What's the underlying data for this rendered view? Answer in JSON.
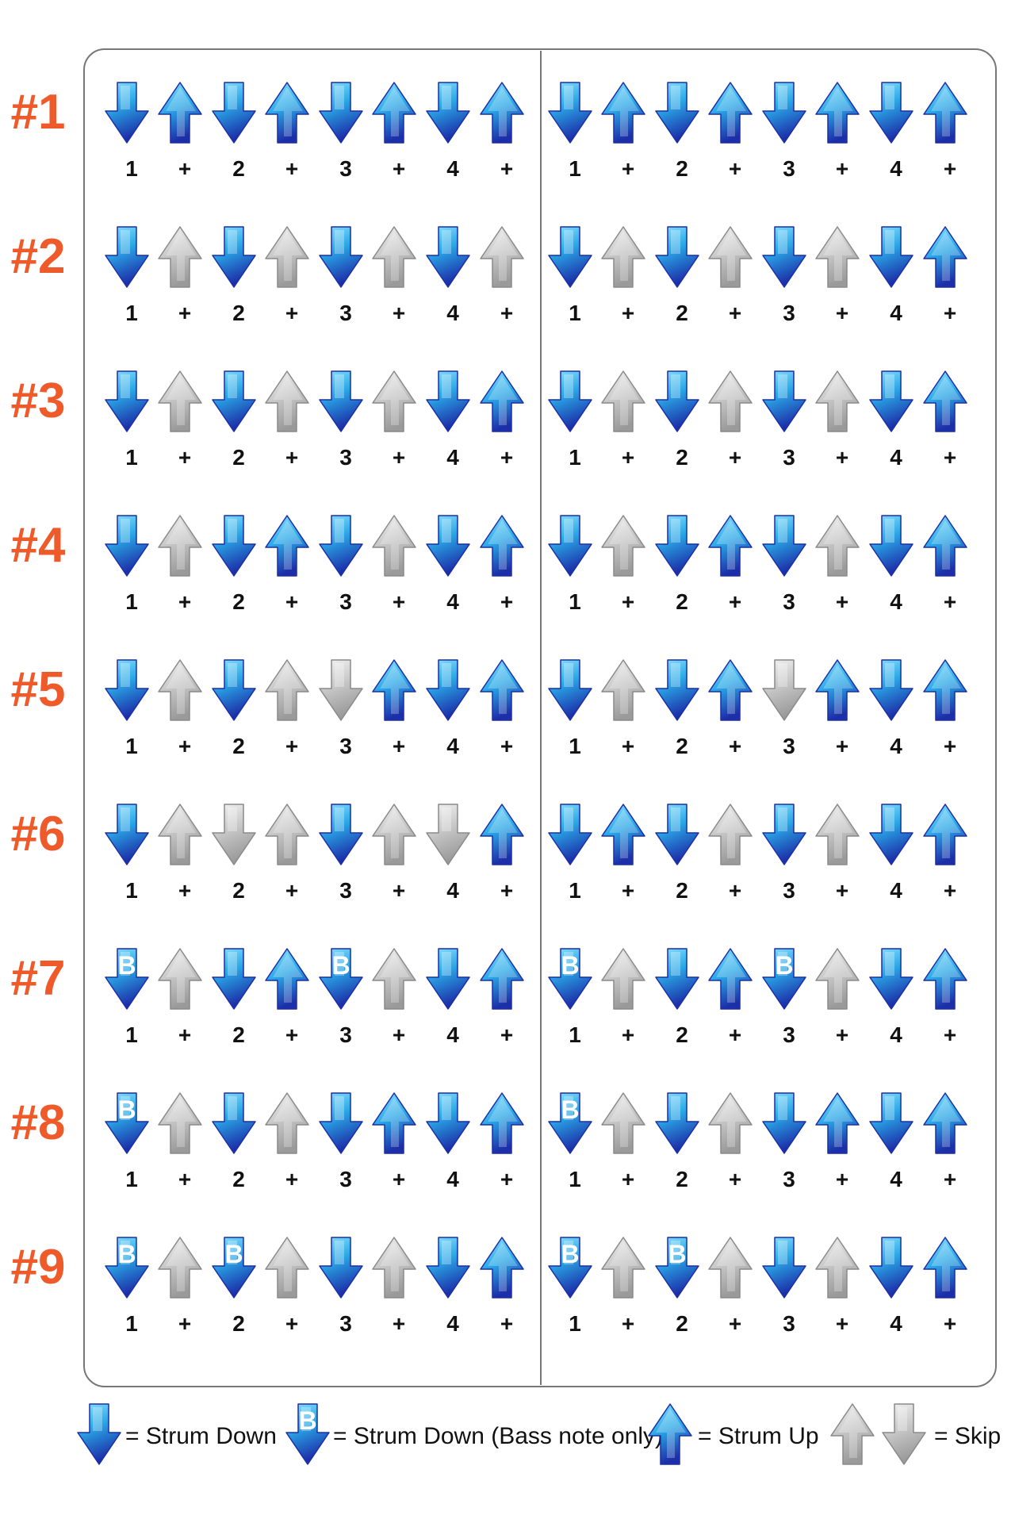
{
  "colors": {
    "label": "#ef5a2a",
    "strum_top": "#8fe3ff",
    "strum_mid": "#2aa7e6",
    "strum_bottom": "#1c2fa8",
    "skip_top": "#f4f4f4",
    "skip_bottom": "#9a9a9a",
    "frame": "#777777",
    "count_text": "#111111"
  },
  "beat_labels": [
    "1",
    "+",
    "2",
    "+",
    "3",
    "+",
    "4",
    "+"
  ],
  "bass_letter": "B",
  "patterns": [
    {
      "label": "#1",
      "measures": [
        [
          "down",
          "up",
          "down",
          "up",
          "down",
          "up",
          "down",
          "up"
        ],
        [
          "down",
          "up",
          "down",
          "up",
          "down",
          "up",
          "down",
          "up"
        ]
      ]
    },
    {
      "label": "#2",
      "measures": [
        [
          "down",
          "skip-up",
          "down",
          "skip-up",
          "down",
          "skip-up",
          "down",
          "skip-up"
        ],
        [
          "down",
          "skip-up",
          "down",
          "skip-up",
          "down",
          "skip-up",
          "down",
          "up"
        ]
      ]
    },
    {
      "label": "#3",
      "measures": [
        [
          "down",
          "skip-up",
          "down",
          "skip-up",
          "down",
          "skip-up",
          "down",
          "up"
        ],
        [
          "down",
          "skip-up",
          "down",
          "skip-up",
          "down",
          "skip-up",
          "down",
          "up"
        ]
      ]
    },
    {
      "label": "#4",
      "measures": [
        [
          "down",
          "skip-up",
          "down",
          "up",
          "down",
          "skip-up",
          "down",
          "up"
        ],
        [
          "down",
          "skip-up",
          "down",
          "up",
          "down",
          "skip-up",
          "down",
          "up"
        ]
      ]
    },
    {
      "label": "#5",
      "measures": [
        [
          "down",
          "skip-up",
          "down",
          "skip-up",
          "skip-down",
          "up",
          "down",
          "up"
        ],
        [
          "down",
          "skip-up",
          "down",
          "up",
          "skip-down",
          "up",
          "down",
          "up"
        ]
      ]
    },
    {
      "label": "#6",
      "measures": [
        [
          "down",
          "skip-up",
          "skip-down",
          "skip-up",
          "down",
          "skip-up",
          "skip-down",
          "up"
        ],
        [
          "down",
          "up",
          "down",
          "skip-up",
          "down",
          "skip-up",
          "down",
          "up"
        ]
      ]
    },
    {
      "label": "#7",
      "measures": [
        [
          "bass",
          "skip-up",
          "down",
          "up",
          "bass",
          "skip-up",
          "down",
          "up"
        ],
        [
          "bass",
          "skip-up",
          "down",
          "up",
          "bass",
          "skip-up",
          "down",
          "up"
        ]
      ]
    },
    {
      "label": "#8",
      "measures": [
        [
          "bass",
          "skip-up",
          "down",
          "skip-up",
          "down",
          "up",
          "down",
          "up"
        ],
        [
          "bass",
          "skip-up",
          "down",
          "skip-up",
          "down",
          "up",
          "down",
          "up"
        ]
      ]
    },
    {
      "label": "#9",
      "measures": [
        [
          "bass",
          "skip-up",
          "bass",
          "skip-up",
          "down",
          "skip-up",
          "down",
          "up"
        ],
        [
          "bass",
          "skip-up",
          "bass",
          "skip-up",
          "down",
          "skip-up",
          "down",
          "up"
        ]
      ]
    }
  ],
  "legend": {
    "strum_down": "= Strum Down",
    "bass_down": "= Strum Down (Bass note only)",
    "strum_up": "= Strum Up",
    "skip": "= Skip"
  }
}
